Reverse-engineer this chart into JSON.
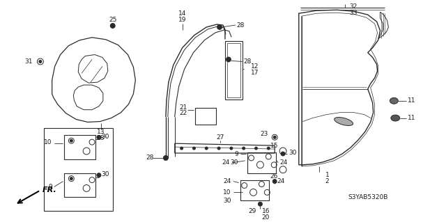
{
  "background_color": "#ffffff",
  "diagram_code": "S3YAB5320B",
  "line_color": "#2a2a2a",
  "text_color": "#1a1a1a",
  "figsize": [
    6.4,
    3.19
  ],
  "dpi": 100
}
